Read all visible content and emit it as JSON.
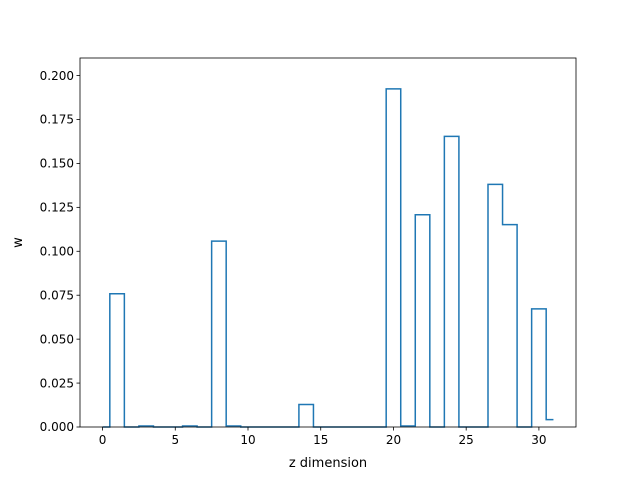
{
  "chart_data": {
    "type": "step",
    "title": "",
    "xlabel": "z dimension",
    "ylabel": "w",
    "xlim": [
      -1.55,
      32.55
    ],
    "ylim": [
      0,
      0.21
    ],
    "xticks": [
      0,
      5,
      10,
      15,
      20,
      25,
      30
    ],
    "yticks": [
      0.0,
      0.025,
      0.05,
      0.075,
      0.1,
      0.125,
      0.15,
      0.175,
      0.2
    ],
    "ytick_labels": [
      "0.000",
      "0.025",
      "0.050",
      "0.075",
      "0.100",
      "0.125",
      "0.150",
      "0.175",
      "0.200"
    ],
    "x": [
      0,
      1,
      2,
      3,
      4,
      5,
      6,
      7,
      8,
      9,
      10,
      11,
      12,
      13,
      14,
      15,
      16,
      17,
      18,
      19,
      20,
      21,
      22,
      23,
      24,
      25,
      26,
      27,
      28,
      29,
      30,
      31
    ],
    "values": [
      0.0,
      0.0758,
      0.0,
      0.0006,
      0.0,
      0.0,
      0.0006,
      0.0,
      0.1058,
      0.0006,
      0.0,
      0.0,
      0.0,
      0.0,
      0.0128,
      0.0,
      0.0,
      0.0,
      0.0,
      0.0,
      0.1924,
      0.0006,
      0.1208,
      0.0,
      0.1654,
      0.0,
      0.0,
      0.1381,
      0.1152,
      0.0,
      0.0672,
      0.0042
    ],
    "colors": {
      "line": "#1f77b4",
      "axes": "#000000"
    },
    "grid": false
  }
}
